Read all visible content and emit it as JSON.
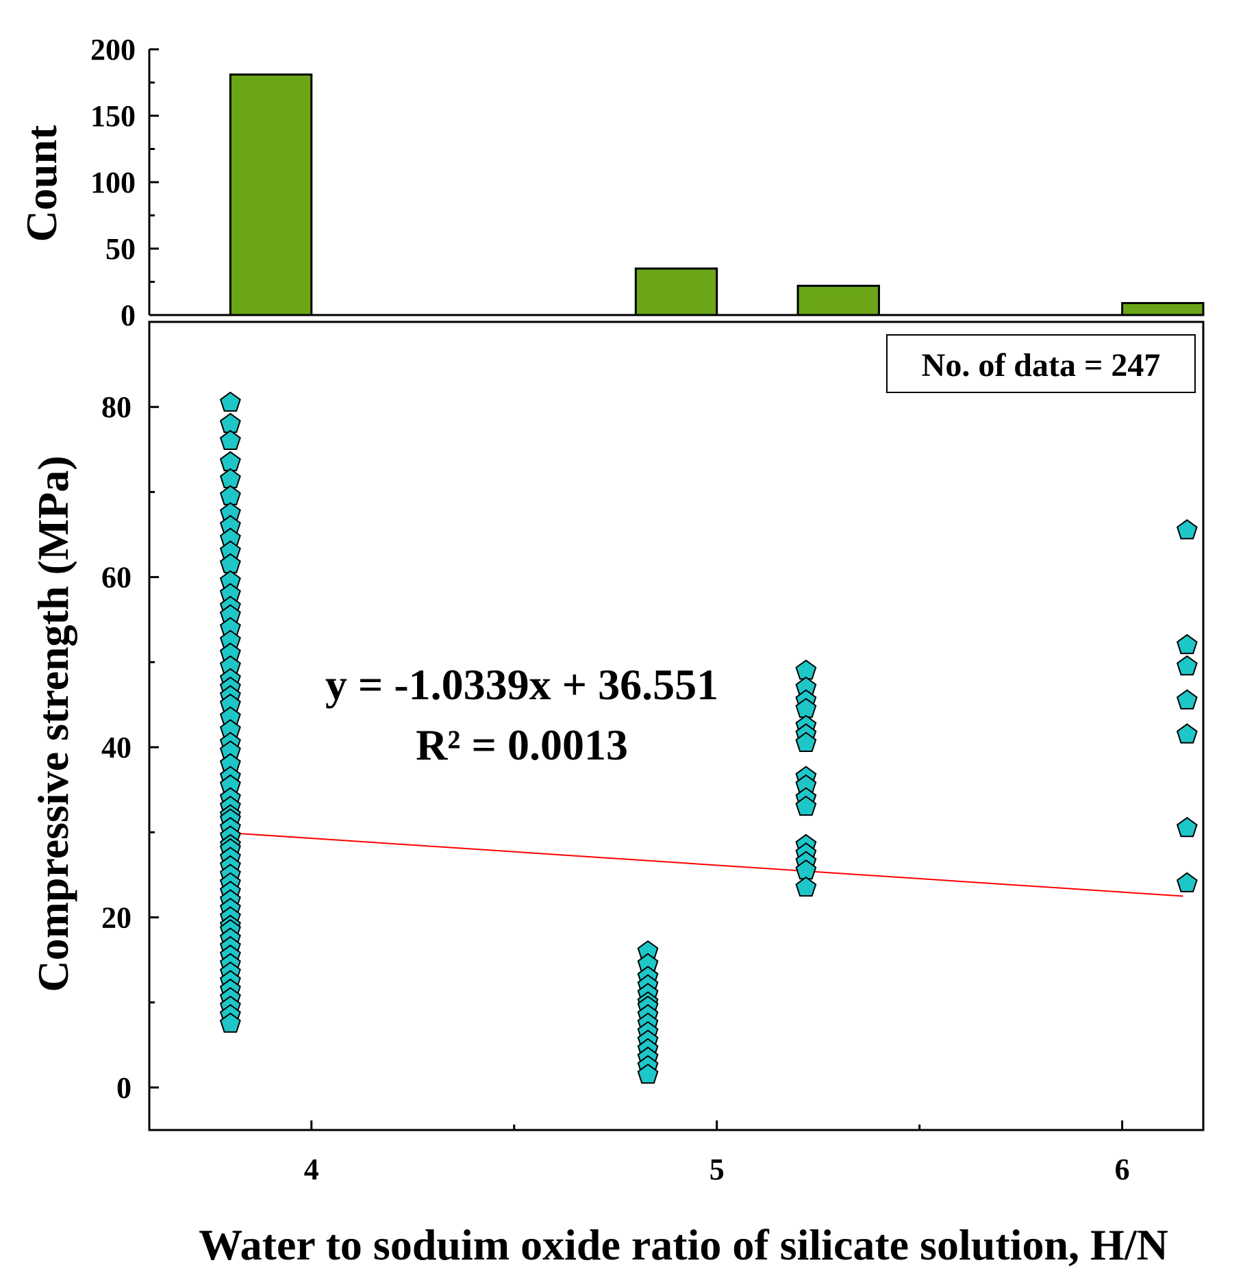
{
  "chart_data": [
    {
      "type": "bar",
      "panel": "histogram",
      "ylabel": "Count",
      "ylim": [
        0,
        200
      ],
      "yticks": [
        0,
        50,
        100,
        150,
        200
      ],
      "bins": [
        {
          "x0": 3.8,
          "x1": 4.0,
          "count": 181
        },
        {
          "x0": 4.8,
          "x1": 5.0,
          "count": 35
        },
        {
          "x0": 5.2,
          "x1": 5.4,
          "count": 22
        },
        {
          "x0": 6.0,
          "x1": 6.2,
          "count": 9
        }
      ]
    },
    {
      "type": "scatter",
      "panel": "main",
      "xlabel": "Water to soduim oxide ratio of silicate solution, H/N",
      "ylabel": "Compressive strength (MPa)",
      "xlim": [
        3.6,
        6.2
      ],
      "ylim": [
        -5,
        90
      ],
      "xticks": [
        4,
        5,
        6
      ],
      "yticks": [
        0,
        20,
        40,
        60,
        80
      ],
      "legend": "No. of data = 247",
      "legend_position": "top-right",
      "equation": "y = -1.0339x + 36.551",
      "r2": "R² = 0.0013",
      "fit": {
        "slope": -1.0339,
        "intercept": 36.551,
        "x_range": [
          3.8,
          6.15
        ]
      },
      "groups": [
        {
          "x": 3.8,
          "y": [
            80.5,
            78,
            76,
            73.5,
            71.5,
            69.5,
            67.5,
            66,
            64.5,
            63,
            61.5,
            59.5,
            58,
            56.5,
            55.5,
            54,
            52.5,
            51,
            49.5,
            48,
            47,
            46,
            45,
            43.5,
            42,
            40.5,
            39.5,
            38,
            36.5,
            35.5,
            34,
            33,
            32,
            31.5,
            30.5,
            29.5,
            28.5,
            28,
            27,
            26,
            25,
            24,
            23,
            22,
            21,
            20,
            19,
            18.5,
            17.5,
            16.5,
            15.5,
            14.5,
            13.5,
            12.5,
            11.5,
            10.5,
            9.5,
            8.5,
            7.5
          ]
        },
        {
          "x": 4.83,
          "y": [
            16,
            14.5,
            13,
            12,
            11,
            10,
            9.5,
            8.5,
            7.5,
            6.5,
            5.5,
            4.5,
            3.5,
            2.5,
            1.5
          ]
        },
        {
          "x": 5.22,
          "y": [
            49,
            47,
            45.5,
            44.5,
            42.5,
            41.5,
            40.5,
            36.5,
            35.5,
            34,
            33,
            28.5,
            27.5,
            26.5,
            25.5,
            23.5
          ]
        },
        {
          "x": 6.16,
          "y": [
            65.5,
            52,
            49.5,
            45.5,
            41.5,
            30.5,
            24
          ]
        }
      ]
    }
  ]
}
